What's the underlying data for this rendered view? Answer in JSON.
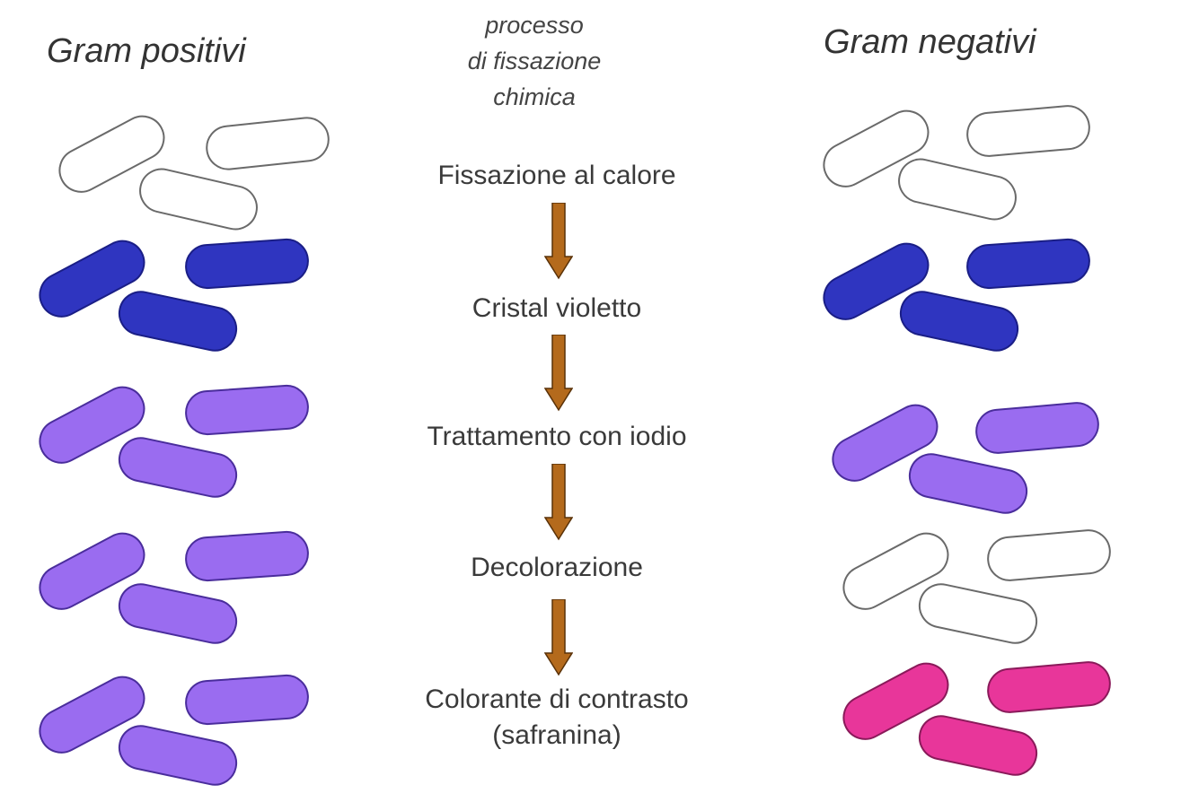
{
  "left_title": "Gram positivi",
  "right_title": "Gram negativi",
  "process_label": [
    "processo",
    "di fissazione",
    "chimica"
  ],
  "steps": [
    "Fissazione al calore",
    "Cristal violetto",
    "Trattamento con iodio",
    "Decolorazione",
    [
      "Colorante di contrasto",
      "(safranina)"
    ]
  ],
  "colors": {
    "uncolored": "#ffffff",
    "crystal_violet": "#2f35c0",
    "iodine_purple": "#9a6cf0",
    "safranin_pink": "#e8369a",
    "arrow": "#b46a1c"
  },
  "gram_positive_states": [
    "uncolored",
    "crystal_violet",
    "iodine_purple",
    "iodine_purple",
    "iodine_purple"
  ],
  "gram_negative_states": [
    "uncolored",
    "crystal_violet",
    "iodine_purple",
    "uncolored",
    "safranin_pink"
  ]
}
